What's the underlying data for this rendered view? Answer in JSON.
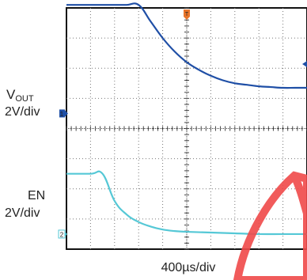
{
  "chart_data": {
    "type": "line",
    "title": "",
    "xlabel": "400µs/div",
    "x_unit": "µs",
    "xlim": [
      0,
      4000
    ],
    "grid": true,
    "channels": [
      {
        "label_main": "V",
        "label_sub": "OUT",
        "scale": "2V/div",
        "marker": "1",
        "color": "#1f4fa6",
        "ground_div": 4.5,
        "volts_per_div": 2,
        "x": [
          0,
          400,
          800,
          1000,
          1200,
          1400,
          1600,
          1800,
          2000,
          2200,
          2400,
          2600,
          2800,
          3000,
          3200,
          3400,
          3600,
          3800,
          4000
        ],
        "y": [
          7.2,
          7.2,
          7.2,
          7.2,
          7.2,
          6.1,
          5.0,
          4.1,
          3.4,
          2.9,
          2.5,
          2.2,
          2.0,
          1.9,
          1.8,
          1.75,
          1.7,
          1.7,
          1.7
        ]
      },
      {
        "label_main": "EN",
        "label_sub": "",
        "scale": "2V/div",
        "marker": "2",
        "color": "#55c8d6",
        "ground_div": 0.5,
        "volts_per_div": 2,
        "x": [
          0,
          400,
          600,
          800,
          1000,
          1200,
          1400,
          1600,
          1800,
          2000,
          2400,
          2800,
          3200,
          3600,
          4000
        ],
        "y": [
          4.0,
          4.0,
          4.0,
          2.2,
          1.3,
          0.8,
          0.5,
          0.3,
          0.2,
          0.15,
          0.1,
          0.05,
          0.0,
          0.0,
          0.0
        ]
      }
    ]
  }
}
